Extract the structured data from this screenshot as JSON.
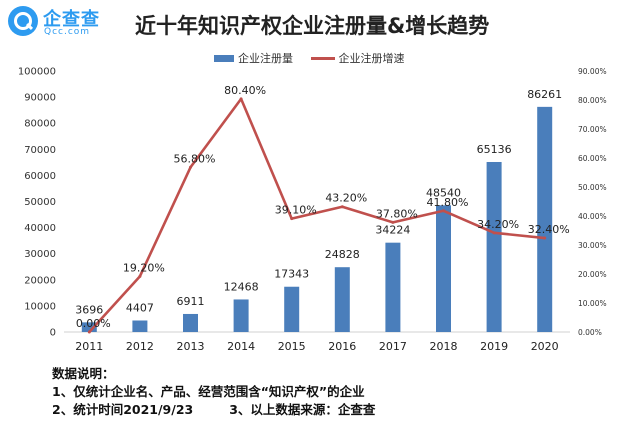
{
  "header": {
    "logo_cn": "企查查",
    "logo_en": "Qcc.com",
    "title": "近十年知识产权企业注册量&增长趋势"
  },
  "legend": {
    "bar_label": "企业注册量",
    "line_label": "企业注册增速"
  },
  "colors": {
    "bar": "#4a7ebb",
    "line": "#c0504d",
    "logo": "#2d9bf0"
  },
  "notes": {
    "heading": "数据说明：",
    "line1": "1、仅统计企业名、产品、经营范围含“知识产权”的企业",
    "line2a": "2、统计时间2021/9/23",
    "line2b": "3、以上数据来源：企查查"
  },
  "chart_data": {
    "type": "bar",
    "title": "近十年知识产权企业注册量&增长趋势",
    "categories": [
      "2011",
      "2012",
      "2013",
      "2014",
      "2015",
      "2016",
      "2017",
      "2018",
      "2019",
      "2020"
    ],
    "series": [
      {
        "name": "企业注册量",
        "type": "bar",
        "axis": "left",
        "values": [
          3696,
          4407,
          6911,
          12468,
          17343,
          24828,
          34224,
          48540,
          65136,
          86261
        ],
        "labels": [
          "3696",
          "4407",
          "6911",
          "12468",
          "17343",
          "24828",
          "34224",
          "48540",
          "65136",
          "86261"
        ]
      },
      {
        "name": "企业注册增速",
        "type": "line",
        "axis": "right",
        "values": [
          0.0,
          19.2,
          56.8,
          80.4,
          39.1,
          43.2,
          37.8,
          41.8,
          34.2,
          32.4
        ],
        "labels": [
          "0.00%",
          "19.20%",
          "56.80%",
          "80.40%",
          "39.10%",
          "43.20%",
          "37.80%",
          "41.80%",
          "34.20%",
          "32.40%"
        ]
      }
    ],
    "y_left": {
      "ylim": [
        0,
        100000
      ],
      "ticks": [
        "0",
        "10000",
        "20000",
        "30000",
        "40000",
        "50000",
        "60000",
        "70000",
        "80000",
        "90000",
        "100000"
      ]
    },
    "y_right": {
      "ylim": [
        0,
        90
      ],
      "ticks": [
        "0.00%",
        "10.00%",
        "20.00%",
        "30.00%",
        "40.00%",
        "50.00%",
        "60.00%",
        "70.00%",
        "80.00%",
        "90.00%"
      ]
    },
    "grid": false,
    "legend_position": "top-center"
  }
}
